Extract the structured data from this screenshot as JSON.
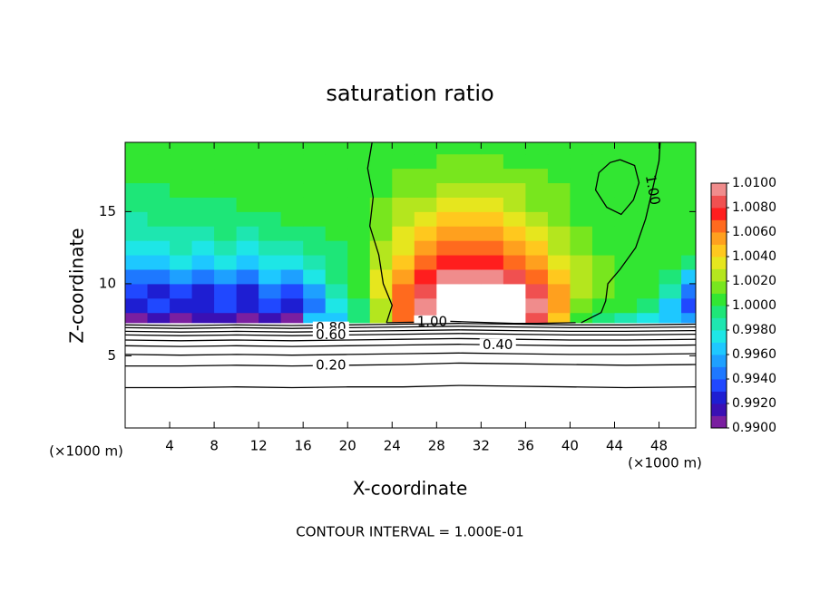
{
  "chart_data": {
    "type": "contour",
    "title": "saturation ratio",
    "xlabel": "X-coordinate",
    "ylabel": "Z-coordinate",
    "x_unit_label": "(×1000 m)",
    "y_unit_label": "(×1000 m)",
    "footer": "CONTOUR INTERVAL = 1.000E-01",
    "xlim": [
      0,
      51.3
    ],
    "xticks": [
      4,
      8,
      12,
      16,
      20,
      24,
      28,
      32,
      36,
      40,
      44,
      48
    ],
    "ylim": [
      0,
      19.8
    ],
    "yticks": [
      5,
      10,
      15
    ],
    "field": {
      "x_edges": [
        0,
        2,
        4,
        6,
        8,
        10,
        12,
        14,
        16,
        18,
        20,
        22,
        24,
        26,
        28,
        30,
        32,
        34,
        36,
        38,
        40,
        42,
        44,
        46,
        48,
        50,
        52
      ],
      "z_edges": [
        7.3,
        8,
        9,
        10,
        11,
        12,
        13,
        14,
        15,
        16,
        17,
        18,
        19,
        20
      ],
      "values": [
        [
          0.99,
          0.991,
          0.99,
          0.991,
          0.991,
          0.99,
          0.991,
          0.99,
          0.996,
          0.996,
          0.999,
          1.002,
          1.006,
          1.009,
          1.012,
          1.012,
          1.012,
          1.012,
          1.008,
          1.004,
          1.0,
          0.999,
          0.998,
          0.997,
          0.996,
          0.995
        ],
        [
          0.992,
          0.993,
          0.992,
          0.992,
          0.993,
          0.992,
          0.993,
          0.992,
          0.994,
          0.997,
          0.999,
          1.002,
          1.006,
          1.009,
          1.012,
          1.012,
          1.012,
          1.012,
          1.009,
          1.005,
          1.001,
          1.0,
          1.0,
          0.999,
          0.996,
          0.993
        ],
        [
          0.993,
          0.992,
          0.993,
          0.992,
          0.993,
          0.992,
          0.994,
          0.993,
          0.995,
          0.998,
          1.0,
          1.003,
          1.006,
          1.008,
          1.011,
          1.012,
          1.012,
          1.011,
          1.008,
          1.005,
          1.002,
          1.001,
          1.0,
          1.0,
          0.998,
          0.994
        ],
        [
          0.994,
          0.994,
          0.995,
          0.994,
          0.995,
          0.994,
          0.996,
          0.995,
          0.997,
          0.999,
          1.0,
          1.003,
          1.005,
          1.007,
          1.009,
          1.009,
          1.009,
          1.008,
          1.006,
          1.004,
          1.002,
          1.001,
          1.0,
          1.0,
          0.999,
          0.996
        ],
        [
          0.996,
          0.996,
          0.997,
          0.996,
          0.997,
          0.996,
          0.997,
          0.997,
          0.998,
          0.999,
          1.0,
          1.002,
          1.004,
          1.006,
          1.007,
          1.007,
          1.007,
          1.006,
          1.005,
          1.003,
          1.002,
          1.001,
          1.0,
          1.0,
          1.0,
          0.999
        ],
        [
          0.997,
          0.997,
          0.998,
          0.997,
          0.998,
          0.997,
          0.998,
          0.998,
          0.999,
          0.999,
          1.0,
          1.002,
          1.003,
          1.005,
          1.006,
          1.006,
          1.006,
          1.005,
          1.004,
          1.002,
          1.001,
          1.0,
          1.0,
          1.0,
          1.0,
          1.0
        ],
        [
          0.998,
          0.998,
          0.998,
          0.998,
          0.999,
          0.998,
          0.999,
          0.999,
          0.999,
          1.0,
          1.0,
          1.001,
          1.003,
          1.004,
          1.005,
          1.005,
          1.005,
          1.004,
          1.003,
          1.002,
          1.001,
          1.0,
          1.0,
          1.0,
          1.0,
          1.0
        ],
        [
          0.998,
          0.999,
          0.999,
          0.999,
          0.999,
          0.999,
          0.999,
          1.0,
          1.0,
          1.0,
          1.0,
          1.001,
          1.002,
          1.003,
          1.004,
          1.004,
          1.004,
          1.003,
          1.002,
          1.001,
          1.0,
          1.0,
          1.0,
          1.0,
          1.0,
          1.0
        ],
        [
          0.999,
          0.999,
          0.999,
          0.999,
          0.999,
          1.0,
          1.0,
          1.0,
          1.0,
          1.0,
          1.0,
          1.001,
          1.002,
          1.002,
          1.003,
          1.003,
          1.003,
          1.002,
          1.001,
          1.001,
          1.0,
          1.0,
          1.0,
          1.0,
          1.0,
          1.0
        ],
        [
          0.999,
          0.999,
          1.0,
          1.0,
          1.0,
          1.0,
          1.0,
          1.0,
          1.0,
          1.0,
          1.0,
          1.0,
          1.001,
          1.001,
          1.002,
          1.002,
          1.002,
          1.002,
          1.001,
          1.001,
          1.0,
          1.0,
          1.0,
          1.0,
          1.0,
          1.0
        ],
        [
          1.0,
          1.0,
          1.0,
          1.0,
          1.0,
          1.0,
          1.0,
          1.0,
          1.0,
          1.0,
          1.0,
          1.0,
          1.001,
          1.001,
          1.001,
          1.001,
          1.001,
          1.001,
          1.001,
          1.0,
          1.0,
          1.0,
          1.0,
          1.0,
          1.0,
          1.0
        ],
        [
          1.0,
          1.0,
          1.0,
          1.0,
          1.0,
          1.0,
          1.0,
          1.0,
          1.0,
          1.0,
          1.0,
          1.0,
          1.0,
          1.0,
          1.001,
          1.001,
          1.001,
          1.0,
          1.0,
          1.0,
          1.0,
          1.0,
          1.0,
          1.0,
          1.0,
          1.0
        ],
        [
          1.0,
          1.0,
          1.0,
          1.0,
          1.0,
          1.0,
          1.0,
          1.0,
          1.0,
          1.0,
          1.0,
          1.0,
          1.0,
          1.0,
          1.0,
          1.0,
          1.0,
          1.0,
          1.0,
          1.0,
          1.0,
          1.0,
          1.0,
          1.0,
          1.0,
          1.0
        ]
      ]
    },
    "colorbar": {
      "zlim": [
        0.99,
        1.01
      ],
      "ticks": [
        {
          "value": 0.99,
          "label": "0.9900"
        },
        {
          "value": 0.992,
          "label": "0.9920"
        },
        {
          "value": 0.994,
          "label": "0.9940"
        },
        {
          "value": 0.996,
          "label": "0.9960"
        },
        {
          "value": 0.998,
          "label": "0.9980"
        },
        {
          "value": 1.0,
          "label": "1.0000"
        },
        {
          "value": 1.002,
          "label": "1.0020"
        },
        {
          "value": 1.004,
          "label": "1.0040"
        },
        {
          "value": 1.006,
          "label": "1.0060"
        },
        {
          "value": 1.008,
          "label": "1.0080"
        },
        {
          "value": 1.01,
          "label": "1.0100"
        }
      ],
      "colors": [
        "#7a1fa0",
        "#3a10b4",
        "#1e1ed2",
        "#2048ff",
        "#1e78ff",
        "#1ea0ff",
        "#1ec8ff",
        "#1ee6e6",
        "#1ee6b0",
        "#1ee678",
        "#32e632",
        "#78e61e",
        "#b4e61e",
        "#e6e61e",
        "#ffc81e",
        "#ffa01e",
        "#ff6a1e",
        "#ff1e1e",
        "#f05050",
        "#f08c8c"
      ]
    },
    "contours": [
      {
        "level": 1.0,
        "x": [
          22.2,
          21.8,
          22.3,
          22.0,
          22.8,
          23.2,
          24.0,
          23.5
        ],
        "y": [
          19.8,
          18,
          16,
          14,
          12,
          10,
          8.5,
          7.3
        ]
      },
      {
        "level": 1.0,
        "x": [
          44.5,
          45.8,
          46.2,
          45.7,
          44.6,
          43.3,
          42.3,
          42.6,
          43.6,
          44.5
        ],
        "y": [
          18.6,
          18.2,
          17,
          15.8,
          14.8,
          15.3,
          16.5,
          17.7,
          18.4,
          18.6
        ]
      },
      {
        "level": 1.0,
        "label": "1.00",
        "x": [
          48.1,
          48.0,
          47.4,
          46.8,
          45.9,
          44.5,
          43.4,
          43.2,
          42.8,
          41.0
        ],
        "y": [
          19.8,
          18.5,
          16.5,
          14.5,
          12.5,
          11,
          10,
          8.8,
          8,
          7.3
        ]
      },
      {
        "level": 1.0,
        "label": "1.00",
        "x": [
          23.5,
          27,
          29,
          31,
          33,
          35,
          37,
          40.5
        ],
        "y": [
          7.3,
          7.35,
          7.4,
          7.35,
          7.3,
          7.25,
          7.25,
          7.3
        ]
      },
      {
        "level": 0.9,
        "x": [
          0,
          5,
          10,
          15,
          20,
          25,
          30,
          35,
          40,
          45,
          51.3
        ],
        "y": [
          7.15,
          7.1,
          7.15,
          7.1,
          7.15,
          7.2,
          7.25,
          7.2,
          7.15,
          7.15,
          7.2
        ]
      },
      {
        "level": 0.8,
        "label": "0.80",
        "x": [
          0,
          5,
          10,
          15,
          20,
          25,
          30,
          35,
          40,
          45,
          51.3
        ],
        "y": [
          6.95,
          6.9,
          6.95,
          6.9,
          6.95,
          7.0,
          7.05,
          7.0,
          6.95,
          6.95,
          7.0
        ]
      },
      {
        "level": 0.7,
        "x": [
          0,
          5,
          10,
          15,
          20,
          25,
          30,
          35,
          40,
          45,
          51.3
        ],
        "y": [
          6.7,
          6.65,
          6.7,
          6.65,
          6.7,
          6.75,
          6.8,
          6.75,
          6.7,
          6.7,
          6.75
        ]
      },
      {
        "level": 0.6,
        "label": "0.60",
        "x": [
          0,
          5,
          10,
          15,
          20,
          25,
          30,
          35,
          40,
          45,
          51.3
        ],
        "y": [
          6.45,
          6.4,
          6.45,
          6.4,
          6.45,
          6.5,
          6.55,
          6.5,
          6.45,
          6.45,
          6.5
        ]
      },
      {
        "level": 0.5,
        "x": [
          0,
          5,
          10,
          15,
          20,
          25,
          30,
          35,
          40,
          45,
          51.3
        ],
        "y": [
          6.1,
          6.05,
          6.1,
          6.05,
          6.1,
          6.15,
          6.2,
          6.15,
          6.1,
          6.1,
          6.15
        ]
      },
      {
        "level": 0.4,
        "label": "0.40",
        "x": [
          0,
          5,
          10,
          15,
          20,
          25,
          30,
          35,
          40,
          45,
          51.3
        ],
        "y": [
          5.7,
          5.65,
          5.7,
          5.65,
          5.7,
          5.75,
          5.8,
          5.75,
          5.7,
          5.7,
          5.75
        ]
      },
      {
        "level": 0.3,
        "x": [
          0,
          5,
          10,
          15,
          20,
          25,
          30,
          35,
          40,
          45,
          51.3
        ],
        "y": [
          5.1,
          5.05,
          5.1,
          5.05,
          5.1,
          5.15,
          5.2,
          5.15,
          5.1,
          5.1,
          5.15
        ]
      },
      {
        "level": 0.2,
        "label": "0.20",
        "x": [
          0,
          5,
          10,
          15,
          20,
          25,
          30,
          35,
          40,
          45,
          51.3
        ],
        "y": [
          4.3,
          4.3,
          4.35,
          4.3,
          4.35,
          4.4,
          4.5,
          4.45,
          4.4,
          4.35,
          4.4
        ]
      },
      {
        "level": 0.1,
        "x": [
          0,
          5,
          10,
          15,
          20,
          25,
          30,
          35,
          40,
          45,
          51.3
        ],
        "y": [
          2.8,
          2.8,
          2.85,
          2.8,
          2.85,
          2.85,
          2.95,
          2.9,
          2.85,
          2.8,
          2.85
        ]
      }
    ]
  }
}
